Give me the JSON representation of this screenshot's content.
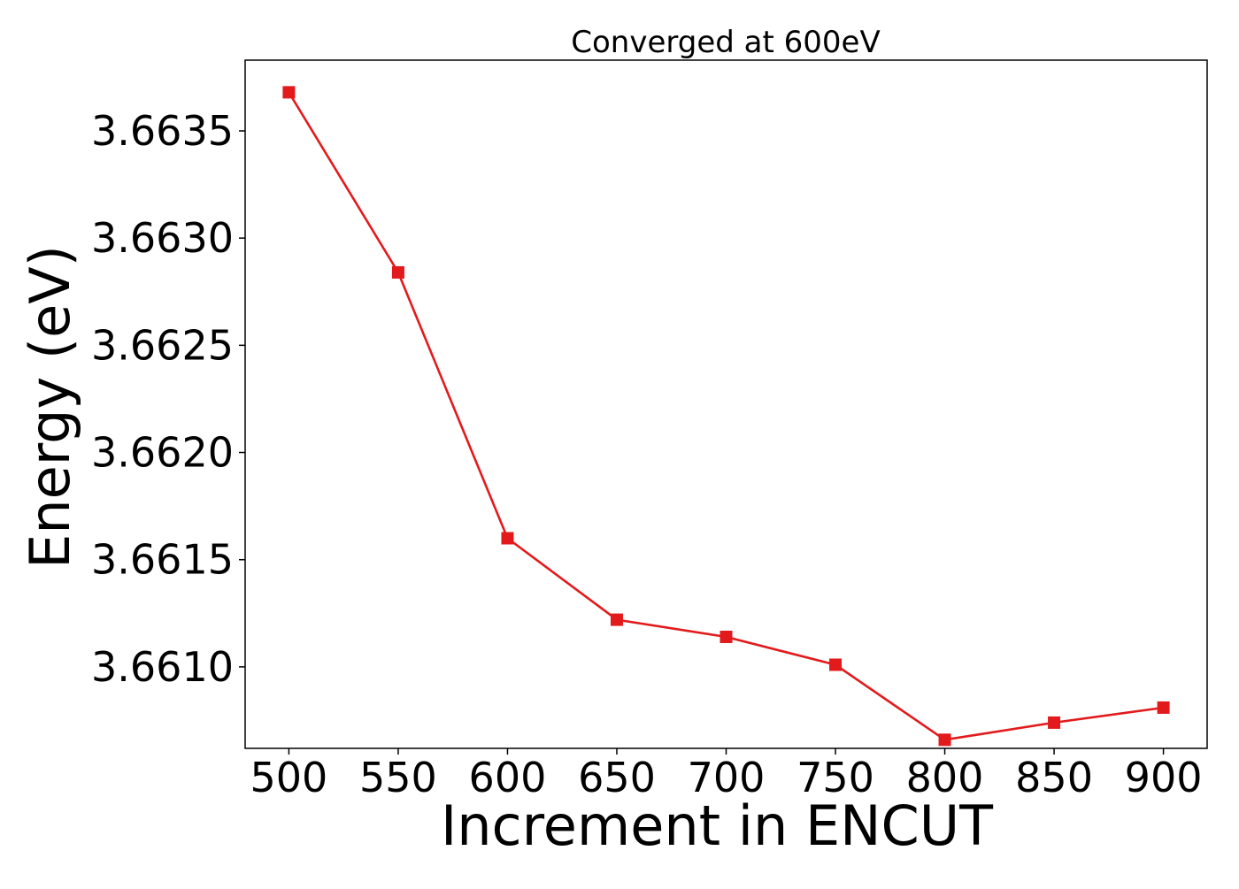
{
  "chart_data": {
    "type": "line",
    "title": "Converged at 600eV",
    "xlabel": "Increment in ENCUT",
    "ylabel": "Energy (eV)",
    "x": [
      500,
      550,
      600,
      650,
      700,
      750,
      800,
      850,
      900
    ],
    "series": [
      {
        "values": [
          3.66368,
          3.66284,
          3.6616,
          3.66122,
          3.66114,
          3.66101,
          3.66066,
          3.66074,
          3.66081
        ],
        "color": "#e31a1c",
        "marker": "square"
      }
    ],
    "xticks": [
      500,
      550,
      600,
      650,
      700,
      750,
      800,
      850,
      900
    ],
    "xtick_labels": [
      "500",
      "550",
      "600",
      "650",
      "700",
      "750",
      "800",
      "850",
      "900"
    ],
    "yticks": [
      3.661,
      3.6615,
      3.662,
      3.6625,
      3.663,
      3.6635
    ],
    "ytick_labels": [
      "3.6610",
      "3.6615",
      "3.6620",
      "3.6625",
      "3.6630",
      "3.6635"
    ],
    "xlim": [
      480,
      920
    ],
    "ylim": [
      3.66062,
      3.66383
    ],
    "grid": false,
    "legend": "none"
  }
}
